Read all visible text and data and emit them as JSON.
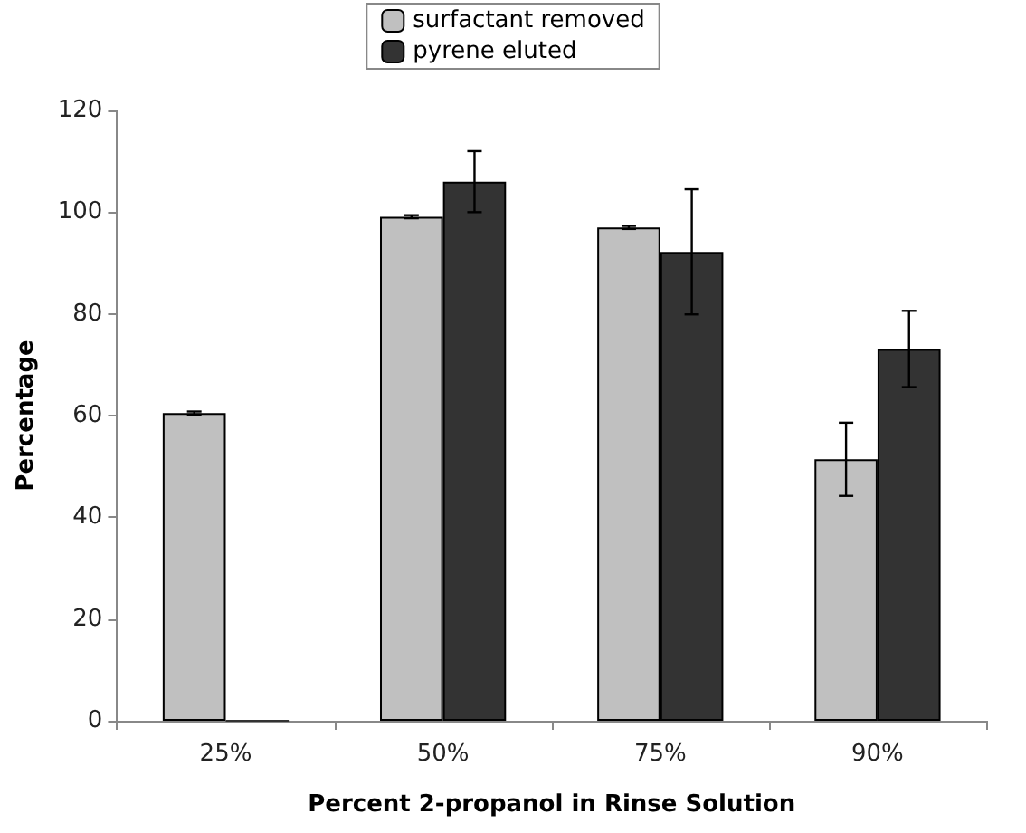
{
  "chart_data": {
    "type": "bar",
    "xlabel": "Percent 2-propanol in Rinse Solution",
    "ylabel": "Percentage",
    "categories": [
      "25%",
      "50%",
      "75%",
      "90%"
    ],
    "series": [
      {
        "name": "surfactant removed",
        "color": "#c0c0c0",
        "values": [
          60.5,
          99.1,
          97.0,
          51.4
        ],
        "errors": [
          0.3,
          0.3,
          0.3,
          7.2
        ]
      },
      {
        "name": "pyrene eluted",
        "color": "#333333",
        "values": [
          0,
          106.0,
          92.2,
          73.1
        ],
        "errors": [
          null,
          6.0,
          12.3,
          7.5
        ]
      }
    ],
    "ylim": [
      0,
      120
    ],
    "yticks": [
      0,
      20,
      40,
      60,
      80,
      100,
      120
    ],
    "grid": false,
    "legend": "top"
  }
}
